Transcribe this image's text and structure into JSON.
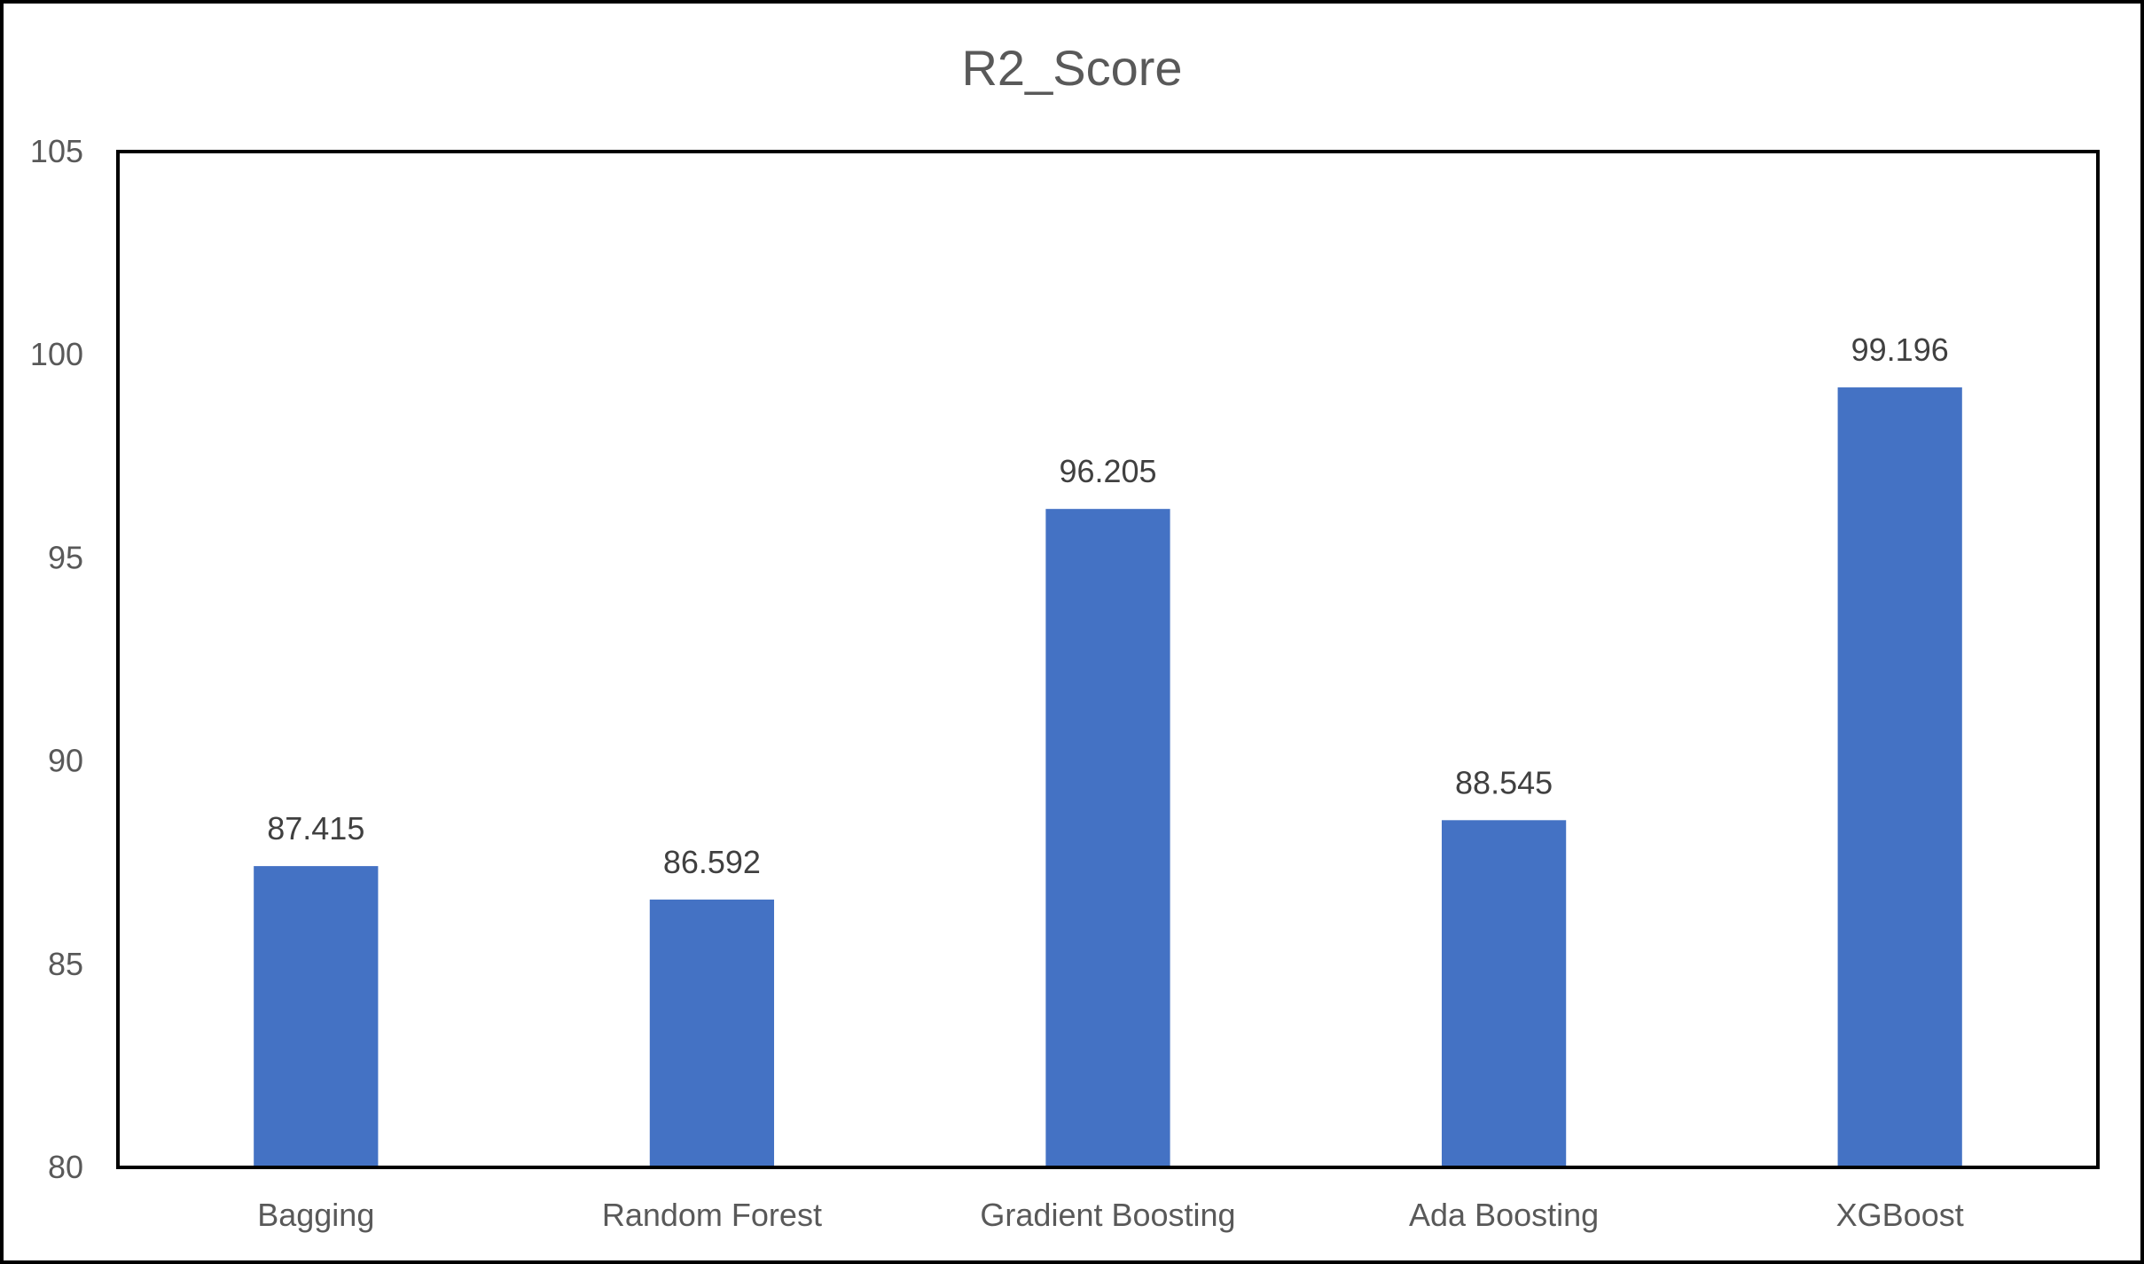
{
  "chart_data": {
    "type": "bar",
    "title": "R2_Score",
    "xlabel": "",
    "ylabel": "",
    "categories": [
      "Bagging",
      "Random Forest",
      "Gradient Boosting",
      "Ada Boosting",
      "XGBoost"
    ],
    "values": [
      87.415,
      86.592,
      96.205,
      88.545,
      99.196
    ],
    "data_labels": [
      "87.415",
      "86.592",
      "96.205",
      "88.545",
      "99.196"
    ],
    "ylim": [
      80,
      105
    ],
    "yticks": [
      80,
      85,
      90,
      95,
      100,
      105
    ],
    "grid": false,
    "legend": "none",
    "bar_color": "#4472C4"
  }
}
